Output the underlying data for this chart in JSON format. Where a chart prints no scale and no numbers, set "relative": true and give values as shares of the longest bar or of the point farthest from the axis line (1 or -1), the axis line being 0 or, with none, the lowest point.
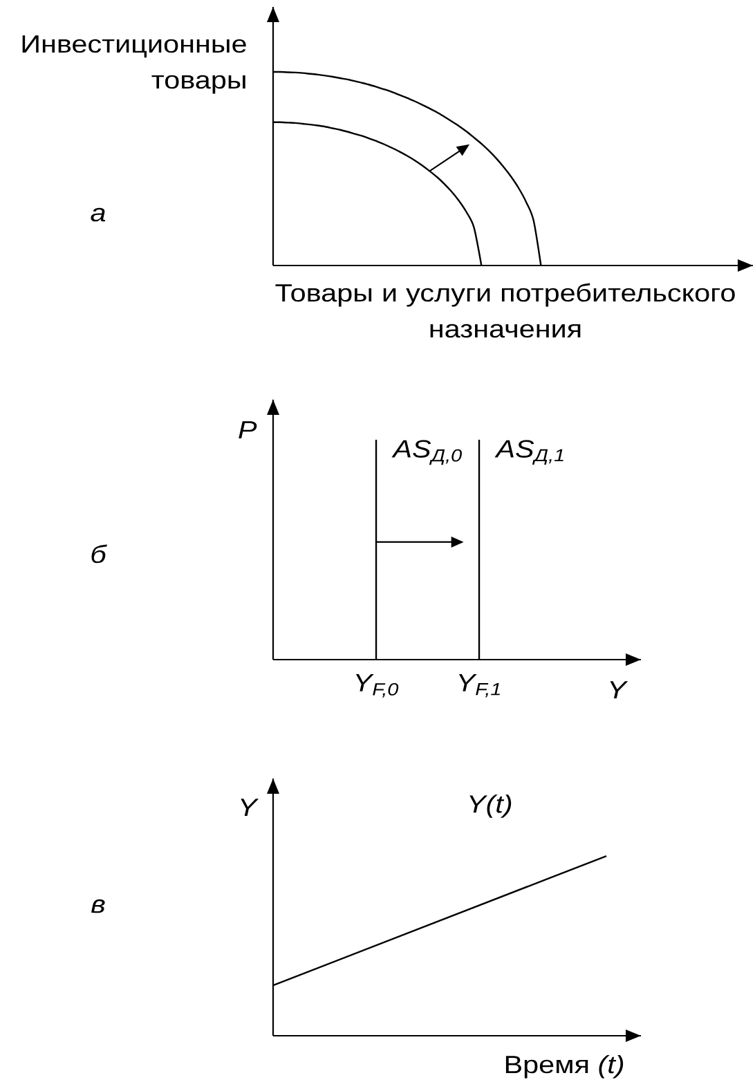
{
  "chart_data": [
    {
      "type": "line",
      "xlabel": "Товары и услуги потребительского назначения",
      "ylabel": "Инвестиционные товары",
      "annotations": [
        "а"
      ],
      "relative": true,
      "tick_labels": false,
      "categories": [
        null,
        null,
        null,
        null,
        null,
        null,
        null,
        null,
        null,
        null,
        null,
        null,
        null,
        null,
        null,
        null,
        null,
        null,
        null,
        null,
        null,
        null,
        null,
        null,
        null,
        null,
        null,
        null,
        null,
        null,
        null,
        null,
        null,
        null,
        null,
        null,
        null
      ],
      "series": [
        {
          "color": "#000000",
          "values": [
            0.74,
            0.74,
            0.738,
            0.736,
            0.732,
            0.728,
            0.723,
            0.717,
            0.709,
            0.701,
            0.691,
            0.68,
            0.669,
            0.655,
            0.641,
            0.625,
            0.607,
            0.588,
            0.567,
            0.544,
            0.518,
            0.489,
            0.458,
            0.422,
            0.381,
            0.333,
            0.275,
            0.196,
            0,
            null,
            null,
            null,
            null,
            null,
            null,
            null,
            null
          ]
        },
        {
          "color": "#000000",
          "values": [
            1,
            1,
            0.998,
            0.997,
            0.994,
            0.99,
            0.986,
            0.981,
            0.975,
            0.968,
            0.961,
            0.952,
            0.943,
            0.933,
            0.921,
            0.909,
            0.896,
            0.881,
            0.866,
            0.849,
            0.831,
            0.812,
            0.792,
            0.769,
            0.745,
            0.72,
            0.692,
            0.661,
            0.629,
            0.593,
            0.553,
            0.508,
            0.458,
            0.4,
            0.329,
            0.234,
            0
          ]
        }
      ]
    },
    {
      "type": "bar",
      "xlabel": "Y",
      "ylabel": "P",
      "annotations": [
        "б"
      ],
      "relative": true,
      "stacked": true,
      "tick_labels": "x",
      "categories": [
        "Y$_{F,0}$",
        "Y$_{F,1}$"
      ],
      "series": [
        {
          "name": "AS$_{Д,0}$",
          "color": "#000000",
          "values": [
            1,
            null
          ]
        },
        {
          "name": "AS$_{Д,1}$",
          "color": "#000000",
          "values": [
            null,
            1
          ]
        }
      ]
    },
    {
      "type": "line",
      "xlabel": "Время *(t)*",
      "ylabel": "Y",
      "annotations": [
        "в"
      ],
      "relative": true,
      "tick_labels": false,
      "categories": [
        null,
        null
      ],
      "series": [
        {
          "name": "Y(t)",
          "color": "#000000",
          "values": [
            0.28,
            1
          ]
        }
      ]
    }
  ]
}
